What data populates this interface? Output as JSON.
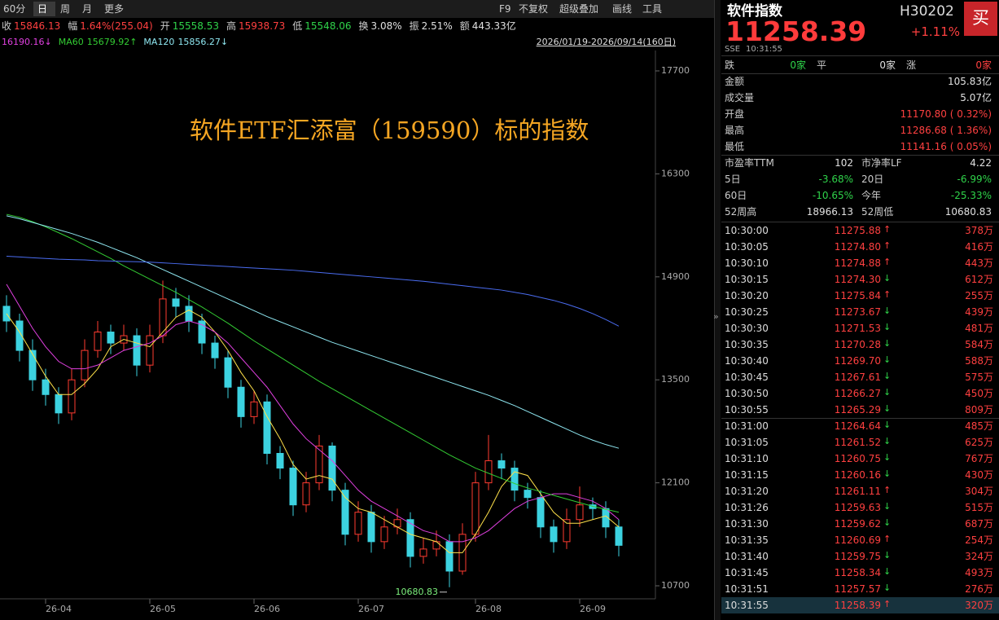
{
  "toolbar": {
    "left": [
      "60分",
      "日",
      "周",
      "月",
      "更多"
    ],
    "right": [
      "F9",
      "不复权",
      "超级叠加",
      "画线",
      "工具"
    ]
  },
  "quote_bar": [
    {
      "label": "收",
      "value": "15846.13",
      "color": "#ff4040"
    },
    {
      "label": "幅",
      "value": "1.64%(255.04)",
      "color": "#ff4040"
    },
    {
      "label": "开",
      "value": "15558.53",
      "color": "#2fd34a"
    },
    {
      "label": "高",
      "value": "15938.73",
      "color": "#ff4040"
    },
    {
      "label": "低",
      "value": "15548.06",
      "color": "#2fd34a"
    },
    {
      "label": "换",
      "value": "3.08%",
      "color": "#e0e0e0"
    },
    {
      "label": "振",
      "value": "2.51%",
      "color": "#e0e0e0"
    },
    {
      "label": "额",
      "value": "443.33亿",
      "color": "#e0e0e0"
    }
  ],
  "date_range": "2026/01/19-2026/09/14(160日)",
  "chart_data": {
    "type": "candlestick",
    "title": "软件ETF汇添富（159590）标的指数",
    "categories": [
      null,
      null,
      null,
      null,
      "26-04",
      null,
      null,
      null,
      null,
      null,
      null,
      null,
      "26-05",
      null,
      null,
      null,
      null,
      null,
      null,
      null,
      "26-06",
      null,
      null,
      null,
      null,
      null,
      null,
      null,
      "26-07",
      null,
      null,
      null,
      null,
      null,
      null,
      null,
      null,
      "26-08",
      null,
      null,
      null,
      null,
      null,
      null,
      null,
      "26-09",
      null,
      null
    ],
    "open": [
      14500,
      14300,
      13900,
      13500,
      13300,
      13050,
      13500,
      13900,
      14150,
      14000,
      14100,
      13700,
      14100,
      14600,
      14500,
      14300,
      14000,
      13800,
      13400,
      13000,
      13200,
      12500,
      12300,
      11800,
      12100,
      12600,
      12000,
      11400,
      11700,
      11300,
      11500,
      11600,
      11100,
      11200,
      11300,
      10900,
      11400,
      12100,
      12400,
      12300,
      12000,
      11900,
      11500,
      11300,
      11600,
      11800,
      11750,
      11500
    ],
    "high": [
      14650,
      14400,
      14050,
      13650,
      13400,
      13650,
      14050,
      14300,
      14250,
      14250,
      14200,
      14250,
      14850,
      14750,
      14650,
      14400,
      14100,
      13900,
      13500,
      13350,
      13300,
      12600,
      12400,
      12250,
      12750,
      12650,
      12100,
      11850,
      11800,
      11650,
      11750,
      11700,
      11350,
      11450,
      11400,
      11550,
      12250,
      12750,
      12500,
      12400,
      12100,
      12000,
      11600,
      11750,
      12050,
      11900,
      11850,
      11600
    ],
    "low": [
      14150,
      13750,
      13350,
      13150,
      12900,
      12950,
      13400,
      13800,
      13850,
      13900,
      13550,
      13600,
      14000,
      14350,
      14150,
      13850,
      13650,
      13250,
      12850,
      12900,
      12350,
      12150,
      11650,
      11700,
      12000,
      11850,
      11250,
      11300,
      11150,
      11200,
      11400,
      10950,
      11000,
      11100,
      10680.83,
      10850,
      11300,
      12000,
      12150,
      11850,
      11750,
      11350,
      11150,
      11200,
      11500,
      11600,
      11350,
      11100
    ],
    "close": [
      14300,
      13900,
      13500,
      13300,
      13050,
      13500,
      13900,
      14150,
      14000,
      14100,
      13700,
      14100,
      14600,
      14500,
      14300,
      14000,
      13800,
      13400,
      13000,
      13200,
      12500,
      12300,
      11800,
      12100,
      12600,
      12000,
      11400,
      11700,
      11300,
      11500,
      11600,
      11100,
      11200,
      11300,
      10900,
      11400,
      12100,
      12400,
      12300,
      12000,
      11900,
      11500,
      11300,
      11600,
      11800,
      11750,
      11500,
      11250
    ],
    "up_color": "#ff3b30",
    "down_color": "#3cd2e0",
    "low_label": "10680.83",
    "series": [
      {
        "color": "#ffe14a",
        "values": [
          14400,
          14150,
          13850,
          13550,
          13300,
          13300,
          13450,
          13650,
          13950,
          14050,
          14000,
          13950,
          14150,
          14350,
          14450,
          14350,
          14150,
          13900,
          13600,
          13350,
          13000,
          12700,
          12350,
          12150,
          12200,
          12150,
          11900,
          11750,
          11700,
          11600,
          11500,
          11400,
          11350,
          11300,
          11150,
          11150,
          11400,
          11700,
          12050,
          12250,
          12200,
          11950,
          11700,
          11550,
          11550,
          11600,
          11650,
          11500
        ]
      },
      {
        "color": "#e040e0",
        "legend_value": "16190.16↓",
        "values": [
          14800,
          14500,
          14200,
          13950,
          13750,
          13650,
          13650,
          13700,
          13800,
          13900,
          13950,
          14000,
          14100,
          14250,
          14300,
          14250,
          14150,
          14000,
          13800,
          13600,
          13400,
          13150,
          12900,
          12700,
          12550,
          12400,
          12200,
          12000,
          11850,
          11750,
          11650,
          11550,
          11450,
          11400,
          11300,
          11300,
          11350,
          11450,
          11600,
          11750,
          11850,
          11900,
          11950,
          11950,
          11900,
          11850,
          11750,
          11600
        ]
      },
      {
        "name": "MA60",
        "color": "#33cc33",
        "legend_value": "15679.92↑",
        "values": [
          15750,
          15710,
          15650,
          15580,
          15500,
          15420,
          15330,
          15240,
          15150,
          15050,
          14960,
          14870,
          14780,
          14690,
          14590,
          14490,
          14380,
          14270,
          14150,
          14030,
          13920,
          13810,
          13700,
          13590,
          13480,
          13380,
          13280,
          13180,
          13080,
          12980,
          12880,
          12780,
          12680,
          12580,
          12480,
          12390,
          12300,
          12230,
          12160,
          12090,
          12030,
          11980,
          11930,
          11880,
          11830,
          11780,
          11740,
          11700
        ]
      },
      {
        "name": "MA120",
        "color": "#8ee6f0",
        "legend_value": "15856.27↓",
        "values": [
          15730,
          15690,
          15640,
          15590,
          15540,
          15490,
          15430,
          15370,
          15300,
          15230,
          15160,
          15080,
          15000,
          14920,
          14840,
          14760,
          14680,
          14600,
          14520,
          14440,
          14360,
          14290,
          14220,
          14150,
          14080,
          14010,
          13950,
          13890,
          13830,
          13770,
          13710,
          13650,
          13590,
          13530,
          13470,
          13410,
          13350,
          13290,
          13220,
          13150,
          13070,
          12990,
          12910,
          12830,
          12750,
          12680,
          12620,
          12570
        ]
      },
      {
        "color": "#4a6cf0",
        "values": [
          15180,
          15170,
          15160,
          15150,
          15140,
          15135,
          15130,
          15120,
          15115,
          15110,
          15105,
          15100,
          15090,
          15080,
          15070,
          15060,
          15050,
          15040,
          15030,
          15020,
          15010,
          15000,
          14990,
          14975,
          14960,
          14945,
          14930,
          14915,
          14900,
          14885,
          14870,
          14855,
          14840,
          14820,
          14800,
          14780,
          14760,
          14740,
          14720,
          14690,
          14660,
          14620,
          14580,
          14530,
          14470,
          14400,
          14320,
          14230
        ]
      }
    ],
    "ylim": [
      10523,
      17977
    ],
    "yticks": [
      10700,
      12100,
      13500,
      14900,
      16300,
      17700
    ]
  },
  "panel": {
    "name": "软件指数",
    "code": "H30202",
    "buy": "买",
    "price": "11258.39",
    "change": "+1.11%",
    "exchange": "SSE",
    "time": "10:31:55",
    "breadth": [
      {
        "label": "跌",
        "value": "0家",
        "color": "#2fd34a"
      },
      {
        "label": "平",
        "value": "0家",
        "color": "#e0e0e0"
      },
      {
        "label": "涨",
        "value": "0家",
        "color": "#ff4040"
      }
    ],
    "stats": [
      {
        "label": "金额",
        "value": "105.83亿",
        "color": "#e0e0e0"
      },
      {
        "label": "成交量",
        "value": "5.07亿",
        "color": "#e0e0e0"
      },
      {
        "label": "开盘",
        "value": "11170.80 ( 0.32%)",
        "color": "#ff4040"
      },
      {
        "label": "最高",
        "value": "11286.68 ( 1.36%)",
        "color": "#ff4040"
      },
      {
        "label": "最低",
        "value": "11141.16 ( 0.05%)",
        "color": "#ff4040"
      }
    ],
    "metrics": [
      [
        {
          "label": "市盈率TTM",
          "value": "102",
          "color": "#e0e0e0"
        },
        {
          "label": "市净率LF",
          "value": "4.22",
          "color": "#e0e0e0"
        }
      ],
      [
        {
          "label": "5日",
          "value": "-3.68%",
          "color": "#2fd34a"
        },
        {
          "label": "20日",
          "value": "-6.99%",
          "color": "#2fd34a"
        }
      ],
      [
        {
          "label": "60日",
          "value": "-10.65%",
          "color": "#2fd34a"
        },
        {
          "label": "今年",
          "value": "-25.33%",
          "color": "#2fd34a"
        }
      ],
      [
        {
          "label": "52周高",
          "value": "18966.13",
          "color": "#e0e0e0"
        },
        {
          "label": "52周低",
          "value": "10680.83",
          "color": "#e0e0e0"
        }
      ]
    ],
    "trades": [
      {
        "time": "10:30:00",
        "price": "11275.88",
        "dir": "up",
        "volume": "378万"
      },
      {
        "time": "10:30:05",
        "price": "11274.80",
        "dir": "up",
        "volume": "416万"
      },
      {
        "time": "10:30:10",
        "price": "11274.88",
        "dir": "up",
        "volume": "443万"
      },
      {
        "time": "10:30:15",
        "price": "11274.30",
        "dir": "down",
        "volume": "612万"
      },
      {
        "time": "10:30:20",
        "price": "11275.84",
        "dir": "up",
        "volume": "255万"
      },
      {
        "time": "10:30:25",
        "price": "11273.67",
        "dir": "down",
        "volume": "439万"
      },
      {
        "time": "10:30:30",
        "price": "11271.53",
        "dir": "down",
        "volume": "481万"
      },
      {
        "time": "10:30:35",
        "price": "11270.28",
        "dir": "down",
        "volume": "584万"
      },
      {
        "time": "10:30:40",
        "price": "11269.70",
        "dir": "down",
        "volume": "588万"
      },
      {
        "time": "10:30:45",
        "price": "11267.61",
        "dir": "down",
        "volume": "575万"
      },
      {
        "time": "10:30:50",
        "price": "11266.27",
        "dir": "down",
        "volume": "450万"
      },
      {
        "time": "10:30:55",
        "price": "11265.29",
        "dir": "down",
        "volume": "809万"
      },
      {
        "time": "10:31:00",
        "price": "11264.64",
        "dir": "down",
        "volume": "485万"
      },
      {
        "time": "10:31:05",
        "price": "11261.52",
        "dir": "down",
        "volume": "625万"
      },
      {
        "time": "10:31:10",
        "price": "11260.75",
        "dir": "down",
        "volume": "767万"
      },
      {
        "time": "10:31:15",
        "price": "11260.16",
        "dir": "down",
        "volume": "430万"
      },
      {
        "time": "10:31:20",
        "price": "11261.11",
        "dir": "up",
        "volume": "304万"
      },
      {
        "time": "10:31:26",
        "price": "11259.63",
        "dir": "down",
        "volume": "515万"
      },
      {
        "time": "10:31:30",
        "price": "11259.62",
        "dir": "down",
        "volume": "687万"
      },
      {
        "time": "10:31:35",
        "price": "11260.69",
        "dir": "up",
        "volume": "254万"
      },
      {
        "time": "10:31:40",
        "price": "11259.75",
        "dir": "down",
        "volume": "324万"
      },
      {
        "time": "10:31:45",
        "price": "11258.34",
        "dir": "down",
        "volume": "493万"
      },
      {
        "time": "10:31:51",
        "price": "11257.57",
        "dir": "down",
        "volume": "276万"
      },
      {
        "time": "10:31:55",
        "price": "11258.39",
        "dir": "up",
        "volume": "320万"
      }
    ]
  }
}
